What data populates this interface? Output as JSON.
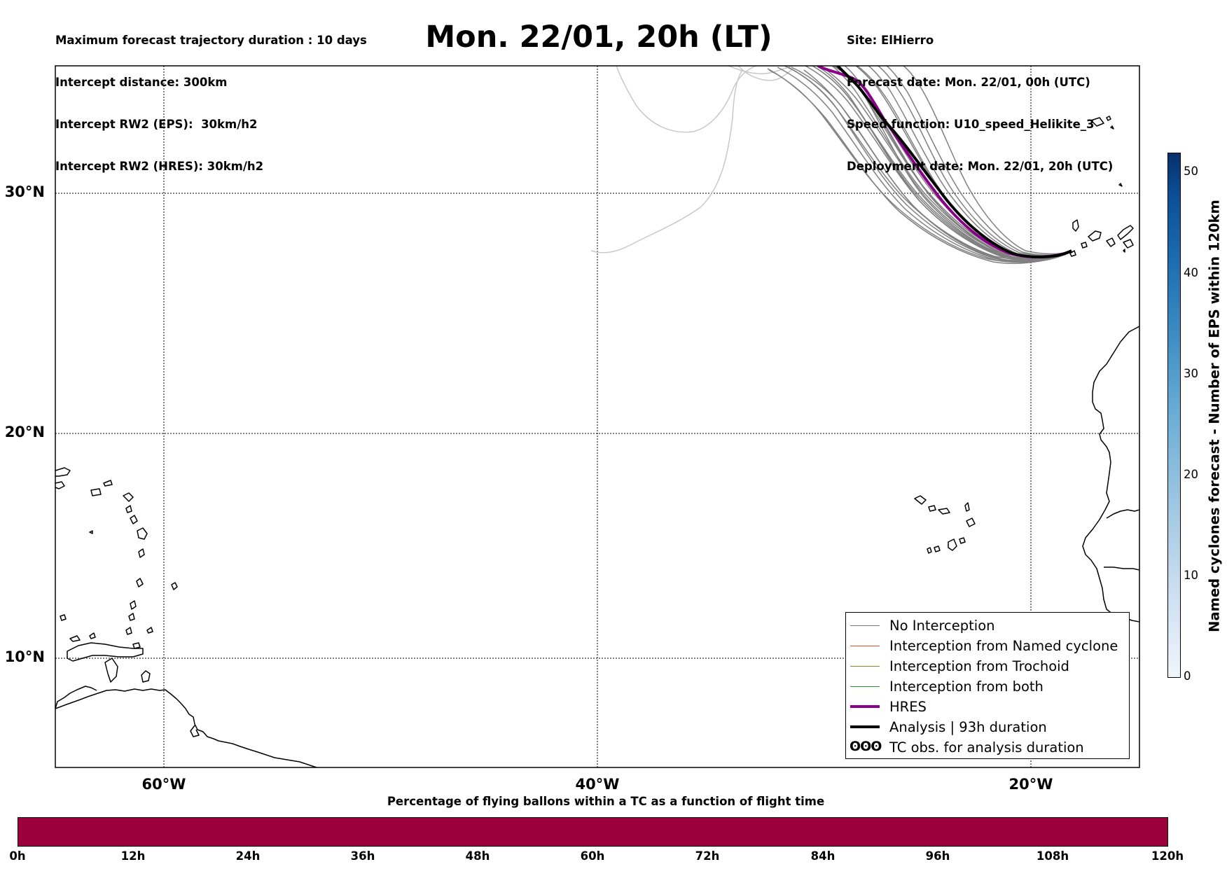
{
  "header": {
    "left_lines": [
      "Maximum forecast trajectory duration : 10 days",
      "Intercept distance: 300km",
      "Intercept RW2 (EPS):  30km/h2",
      "Intercept RW2 (HRES): 30km/h2"
    ],
    "title": "Mon. 22/01, 20h (LT)",
    "right_lines": [
      "Site: ElHierro",
      "Forecast date: Mon. 22/01, 00h (UTC)",
      "Speed function: U10_speed_Helikite_3",
      "Deployment date: Mon. 22/01, 20h (UTC)"
    ]
  },
  "map": {
    "lat_labels": [
      "30°N",
      "20°N",
      "10°N"
    ],
    "lon_labels": [
      "60°W",
      "40°W",
      "20°W"
    ],
    "colors": {
      "eps": "#7a7a7a",
      "eps_faint": "#c8c8c8",
      "hres": "#8b008b",
      "analysis": "#000000"
    }
  },
  "legend": {
    "items": [
      {
        "label": "No Interception",
        "color": "#7a7a7a",
        "width": 1.5
      },
      {
        "label": "Interception from Named cyclone",
        "color": "#e8501c",
        "width": 1.5
      },
      {
        "label": "Interception from Trochoid",
        "color": "#8a8a20",
        "width": 1.5
      },
      {
        "label": "Interception from both",
        "color": "#2e8b2e",
        "width": 1.5
      },
      {
        "label": "HRES",
        "color": "#8b008b",
        "width": 4
      },
      {
        "label": "Analysis | 93h duration",
        "color": "#000000",
        "width": 4
      }
    ],
    "tc_symbol": "ʘʘʘ",
    "tc_label": "TC obs. for analysis duration"
  },
  "colorbar_vertical": {
    "label": "Named cyclones forecast - Number of EPS within 120km",
    "ticks": [
      "0",
      "10",
      "20",
      "30",
      "40",
      "50"
    ],
    "max": 52
  },
  "colorbar_horizontal": {
    "title": "Percentage of flying ballons within a TC as a function of flight time",
    "ticks": [
      "0h",
      "12h",
      "24h",
      "36h",
      "48h",
      "60h",
      "72h",
      "84h",
      "96h",
      "108h",
      "120h"
    ],
    "fill_color": "#9b003d"
  }
}
